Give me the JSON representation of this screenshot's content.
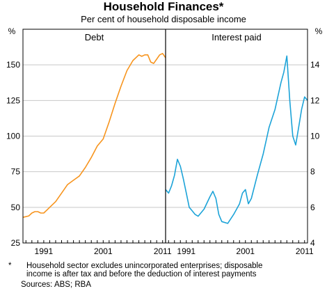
{
  "title": "Household Finances*",
  "subtitle": "Per cent of household disposable income",
  "footnote": {
    "marker": "*",
    "line1": "Household sector excludes unincorporated enterprises; disposable",
    "line2": "income is after tax and before the deduction of interest payments"
  },
  "sources": "Sources: ABS; RBA",
  "colors": {
    "debt": "#f7941d",
    "interest": "#1ca3d8",
    "axis": "#000000",
    "grid": "#c8c8c8"
  },
  "chart_data": [
    {
      "type": "line",
      "title": "Debt",
      "ylabel": "%",
      "ylim": [
        25,
        175
      ],
      "yticks": [
        25,
        50,
        75,
        100,
        125,
        150
      ],
      "xlim": [
        1987.5,
        2011.5
      ],
      "xticks": [
        1991,
        2001,
        2011
      ],
      "grid": true,
      "series": [
        {
          "name": "Debt",
          "color": "#f7941d",
          "x": [
            1987.5,
            1988.5,
            1989,
            1989.5,
            1990,
            1990.5,
            1991,
            1991.5,
            1992,
            1993,
            1994,
            1995,
            1996,
            1997,
            1998,
            1999,
            2000,
            2001,
            2002,
            2003,
            2004,
            2005,
            2006,
            2007,
            2007.5,
            2008,
            2008.5,
            2009,
            2009.5,
            2010,
            2010.5,
            2011,
            2011.5
          ],
          "y": [
            43,
            44,
            46,
            47,
            47,
            46,
            46,
            48,
            50,
            54,
            60,
            66,
            69,
            72,
            78,
            85,
            93,
            98,
            110,
            123,
            135,
            146,
            153,
            157,
            156,
            157,
            157,
            152,
            151,
            154,
            157,
            158,
            155
          ]
        }
      ]
    },
    {
      "type": "line",
      "title": "Interest paid",
      "ylabel": "%",
      "ylim": [
        4,
        16
      ],
      "yticks": [
        4,
        6,
        8,
        10,
        12,
        14
      ],
      "xlim": [
        1987.5,
        2011.5
      ],
      "xticks": [
        1991,
        2001,
        2011
      ],
      "grid": true,
      "series": [
        {
          "name": "Interest paid",
          "color": "#1ca3d8",
          "x": [
            1987.5,
            1988,
            1988.5,
            1989,
            1989.5,
            1990,
            1990.5,
            1991,
            1991.5,
            1992,
            1992.5,
            1993,
            1994,
            1995,
            1995.5,
            1996,
            1996.5,
            1997,
            1998,
            1999,
            2000,
            2000.5,
            2001,
            2001.5,
            2002,
            2003,
            2004,
            2005,
            2006,
            2007,
            2007.5,
            2008,
            2008.5,
            2009,
            2009.5,
            2010,
            2010.5,
            2011,
            2011.5
          ],
          "y": [
            7.0,
            6.8,
            7.2,
            7.8,
            8.7,
            8.3,
            7.6,
            6.8,
            6.0,
            5.8,
            5.6,
            5.5,
            5.9,
            6.6,
            6.9,
            6.5,
            5.6,
            5.2,
            5.1,
            5.6,
            6.2,
            6.8,
            7.0,
            6.2,
            6.5,
            7.8,
            9.0,
            10.5,
            11.5,
            13.0,
            13.6,
            14.5,
            12.0,
            10.0,
            9.5,
            10.5,
            11.5,
            12.2,
            12.0
          ]
        }
      ]
    }
  ]
}
